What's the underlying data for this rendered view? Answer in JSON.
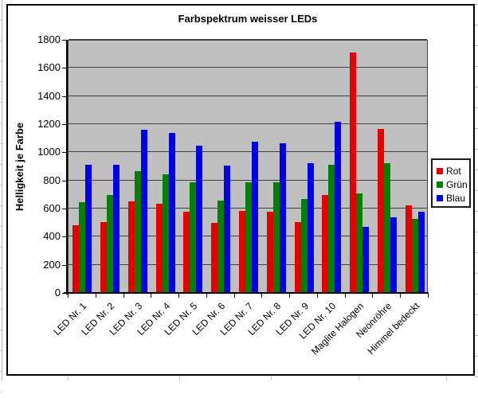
{
  "chart_data": {
    "type": "bar",
    "title": "Farbspektrum weisser LEDs",
    "ylabel": "Helligkeit je Farbe",
    "xlabel": "",
    "ylim": [
      0,
      1800
    ],
    "ytick_step": 200,
    "y_ticks": [
      0,
      200,
      400,
      600,
      800,
      1000,
      1200,
      1400,
      1600,
      1800
    ],
    "grid": true,
    "legend_position": "right",
    "plot_background": "#c0c0c0",
    "gridline_color": "#404040",
    "categories": [
      "LED Nr. 1",
      "LED Nr. 2",
      "LED Nr. 3",
      "LED Nr. 4",
      "LED Nr. 5",
      "LED Nr. 6",
      "LED Nr. 7",
      "LED Nr. 8",
      "LED Nr. 9",
      "LED Nr. 10",
      "Maglite Halogen",
      "Neonröhre",
      "Himmel bedeckt"
    ],
    "series": [
      {
        "name": "Rot",
        "color": "#e80000",
        "values": [
          475,
          500,
          645,
          630,
          570,
          490,
          580,
          570,
          500,
          690,
          1705,
          1160,
          615
        ]
      },
      {
        "name": "Grün",
        "color": "#008200",
        "values": [
          640,
          690,
          860,
          840,
          780,
          650,
          780,
          780,
          665,
          905,
          700,
          915,
          520
        ]
      },
      {
        "name": "Blau",
        "color": "#0000e8",
        "values": [
          905,
          905,
          1155,
          1130,
          1040,
          900,
          1070,
          1060,
          915,
          1210,
          465,
          530,
          570
        ]
      }
    ]
  }
}
